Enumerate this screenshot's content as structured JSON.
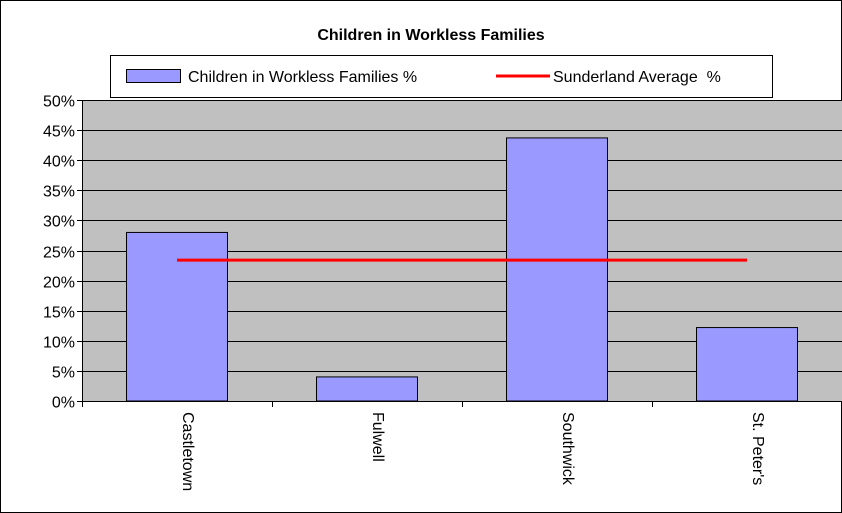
{
  "chart_data": {
    "type": "bar",
    "title": "Children in Workless Families",
    "categories": [
      "Castletown",
      "Fulwell",
      "Southwick",
      "St. Peter's"
    ],
    "series": [
      {
        "name": "Children in Workless Families %",
        "values": [
          28,
          4,
          43.7,
          12.2
        ],
        "color": "#9999ff",
        "kind": "bar"
      },
      {
        "name": "Sunderland Average  %",
        "values": [
          23.4,
          23.4,
          23.4,
          23.4
        ],
        "color": "#ff0000",
        "kind": "line"
      }
    ],
    "y_ticks": [
      "0%",
      "5%",
      "10%",
      "15%",
      "20%",
      "25%",
      "30%",
      "35%",
      "40%",
      "45%",
      "50%"
    ],
    "ylim": [
      0,
      50
    ],
    "grid": true,
    "legend_position": "top",
    "plot_background": "#c0c0c0"
  }
}
